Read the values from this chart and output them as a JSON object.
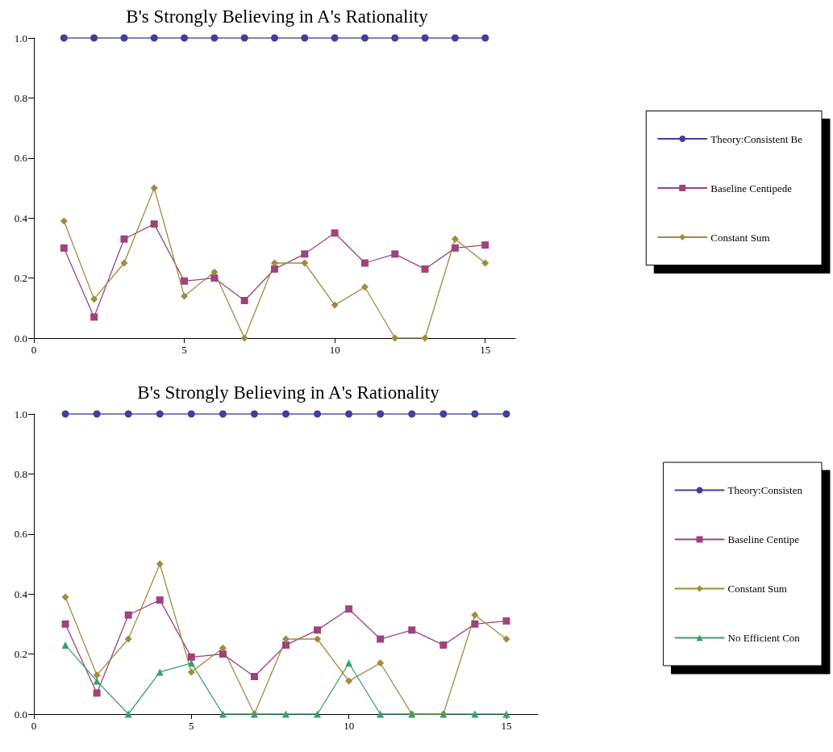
{
  "chart_data": [
    {
      "type": "line",
      "title": "B's Strongly Believing in A's Rationality",
      "x": [
        1,
        2,
        3,
        4,
        5,
        6,
        7,
        8,
        9,
        10,
        11,
        12,
        13,
        14,
        15
      ],
      "xlim": [
        0,
        16
      ],
      "xticks": [
        0,
        5,
        10,
        15
      ],
      "ylim": [
        0,
        1
      ],
      "yticks": [
        {
          "value": 0,
          "label": "0.0"
        },
        {
          "value": 0.2,
          "label": "0.2"
        },
        {
          "value": 0.4,
          "label": "0.4"
        },
        {
          "value": 0.6,
          "label": "0.6"
        },
        {
          "value": 0.8,
          "label": "0.8"
        },
        {
          "value": 1,
          "label": "1.0"
        }
      ],
      "grid": false,
      "legend": "right",
      "line_style": "solid",
      "series": [
        {
          "name": "Theory:Consistent Be",
          "color": "#3f3f9f",
          "marker": "circle",
          "values": [
            1,
            1,
            1,
            1,
            1,
            1,
            1,
            1,
            1,
            1,
            1,
            1,
            1,
            1,
            1
          ]
        },
        {
          "name": "Baseline Centipede",
          "color": "#a0437a",
          "marker": "square",
          "values": [
            0.3,
            0.07,
            0.33,
            0.38,
            0.19,
            0.2,
            0.125,
            0.23,
            0.28,
            0.35,
            0.25,
            0.28,
            0.23,
            0.3,
            0.31
          ]
        },
        {
          "name": "Constant Sum",
          "color": "#a08c3c",
          "marker": "diamond",
          "values": [
            0.39,
            0.13,
            0.25,
            0.5,
            0.14,
            0.22,
            0,
            0.25,
            0.25,
            0.11,
            0.17,
            0,
            0,
            0.33,
            0.25
          ]
        }
      ]
    },
    {
      "type": "line",
      "title": "B's Strongly Believing in A's Rationality",
      "x": [
        1,
        2,
        3,
        4,
        5,
        6,
        7,
        8,
        9,
        10,
        11,
        12,
        13,
        14,
        15
      ],
      "xlim": [
        0,
        16
      ],
      "xticks": [
        0,
        5,
        10,
        15
      ],
      "ylim": [
        0,
        1
      ],
      "yticks": [
        {
          "value": 0,
          "label": "0.0"
        },
        {
          "value": 0.2,
          "label": "0.2"
        },
        {
          "value": 0.4,
          "label": "0.4"
        },
        {
          "value": 0.6,
          "label": "0.6"
        },
        {
          "value": 0.8,
          "label": "0.8"
        },
        {
          "value": 1,
          "label": "1.0"
        }
      ],
      "grid": false,
      "legend": "right",
      "line_style": "solid",
      "series": [
        {
          "name": "Theory:Consisten",
          "color": "#3f3f9f",
          "marker": "circle",
          "values": [
            1,
            1,
            1,
            1,
            1,
            1,
            1,
            1,
            1,
            1,
            1,
            1,
            1,
            1,
            1
          ]
        },
        {
          "name": "Baseline Centipe",
          "color": "#a0437a",
          "marker": "square",
          "values": [
            0.3,
            0.07,
            0.33,
            0.38,
            0.19,
            0.2,
            0.125,
            0.23,
            0.28,
            0.35,
            0.25,
            0.28,
            0.23,
            0.3,
            0.31
          ]
        },
        {
          "name": "Constant Sum",
          "color": "#a08c3c",
          "marker": "diamond",
          "values": [
            0.39,
            0.13,
            0.25,
            0.5,
            0.14,
            0.22,
            0,
            0.25,
            0.25,
            0.11,
            0.17,
            0,
            0,
            0.33,
            0.25
          ]
        },
        {
          "name": "No Efficient Con",
          "color": "#3aa06a",
          "marker": "triangle",
          "values": [
            0.23,
            0.11,
            0,
            0.14,
            0.17,
            0,
            0,
            0,
            0,
            0.17,
            0,
            0,
            0,
            0,
            0
          ]
        }
      ]
    }
  ]
}
